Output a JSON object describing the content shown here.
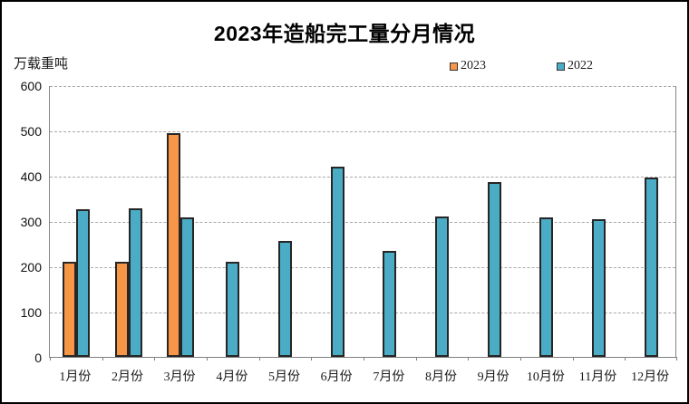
{
  "chart_data": {
    "type": "bar",
    "title": "2023年造船完工量分月情况",
    "ylabel": "万载重吨",
    "xlabel": "",
    "categories": [
      "1月份",
      "2月份",
      "3月份",
      "4月份",
      "5月份",
      "6月份",
      "7月份",
      "8月份",
      "9月份",
      "10月份",
      "11月份",
      "12月份"
    ],
    "series": [
      {
        "name": "2023",
        "color": "#F79646",
        "values": [
          211,
          211,
          495,
          null,
          null,
          null,
          null,
          null,
          null,
          null,
          null,
          null
        ]
      },
      {
        "name": "2022",
        "color": "#4BACC6",
        "values": [
          327,
          328,
          308,
          210,
          257,
          421,
          235,
          310,
          386,
          308,
          304,
          397
        ]
      }
    ],
    "ylim": [
      0,
      600
    ],
    "ytick_step": 100,
    "grid": "horizontal-dashed",
    "legend_position": "top-right",
    "bar_border_color": "#262626",
    "axis_color": "#808080",
    "gridline_color": "#a8a8a8"
  }
}
